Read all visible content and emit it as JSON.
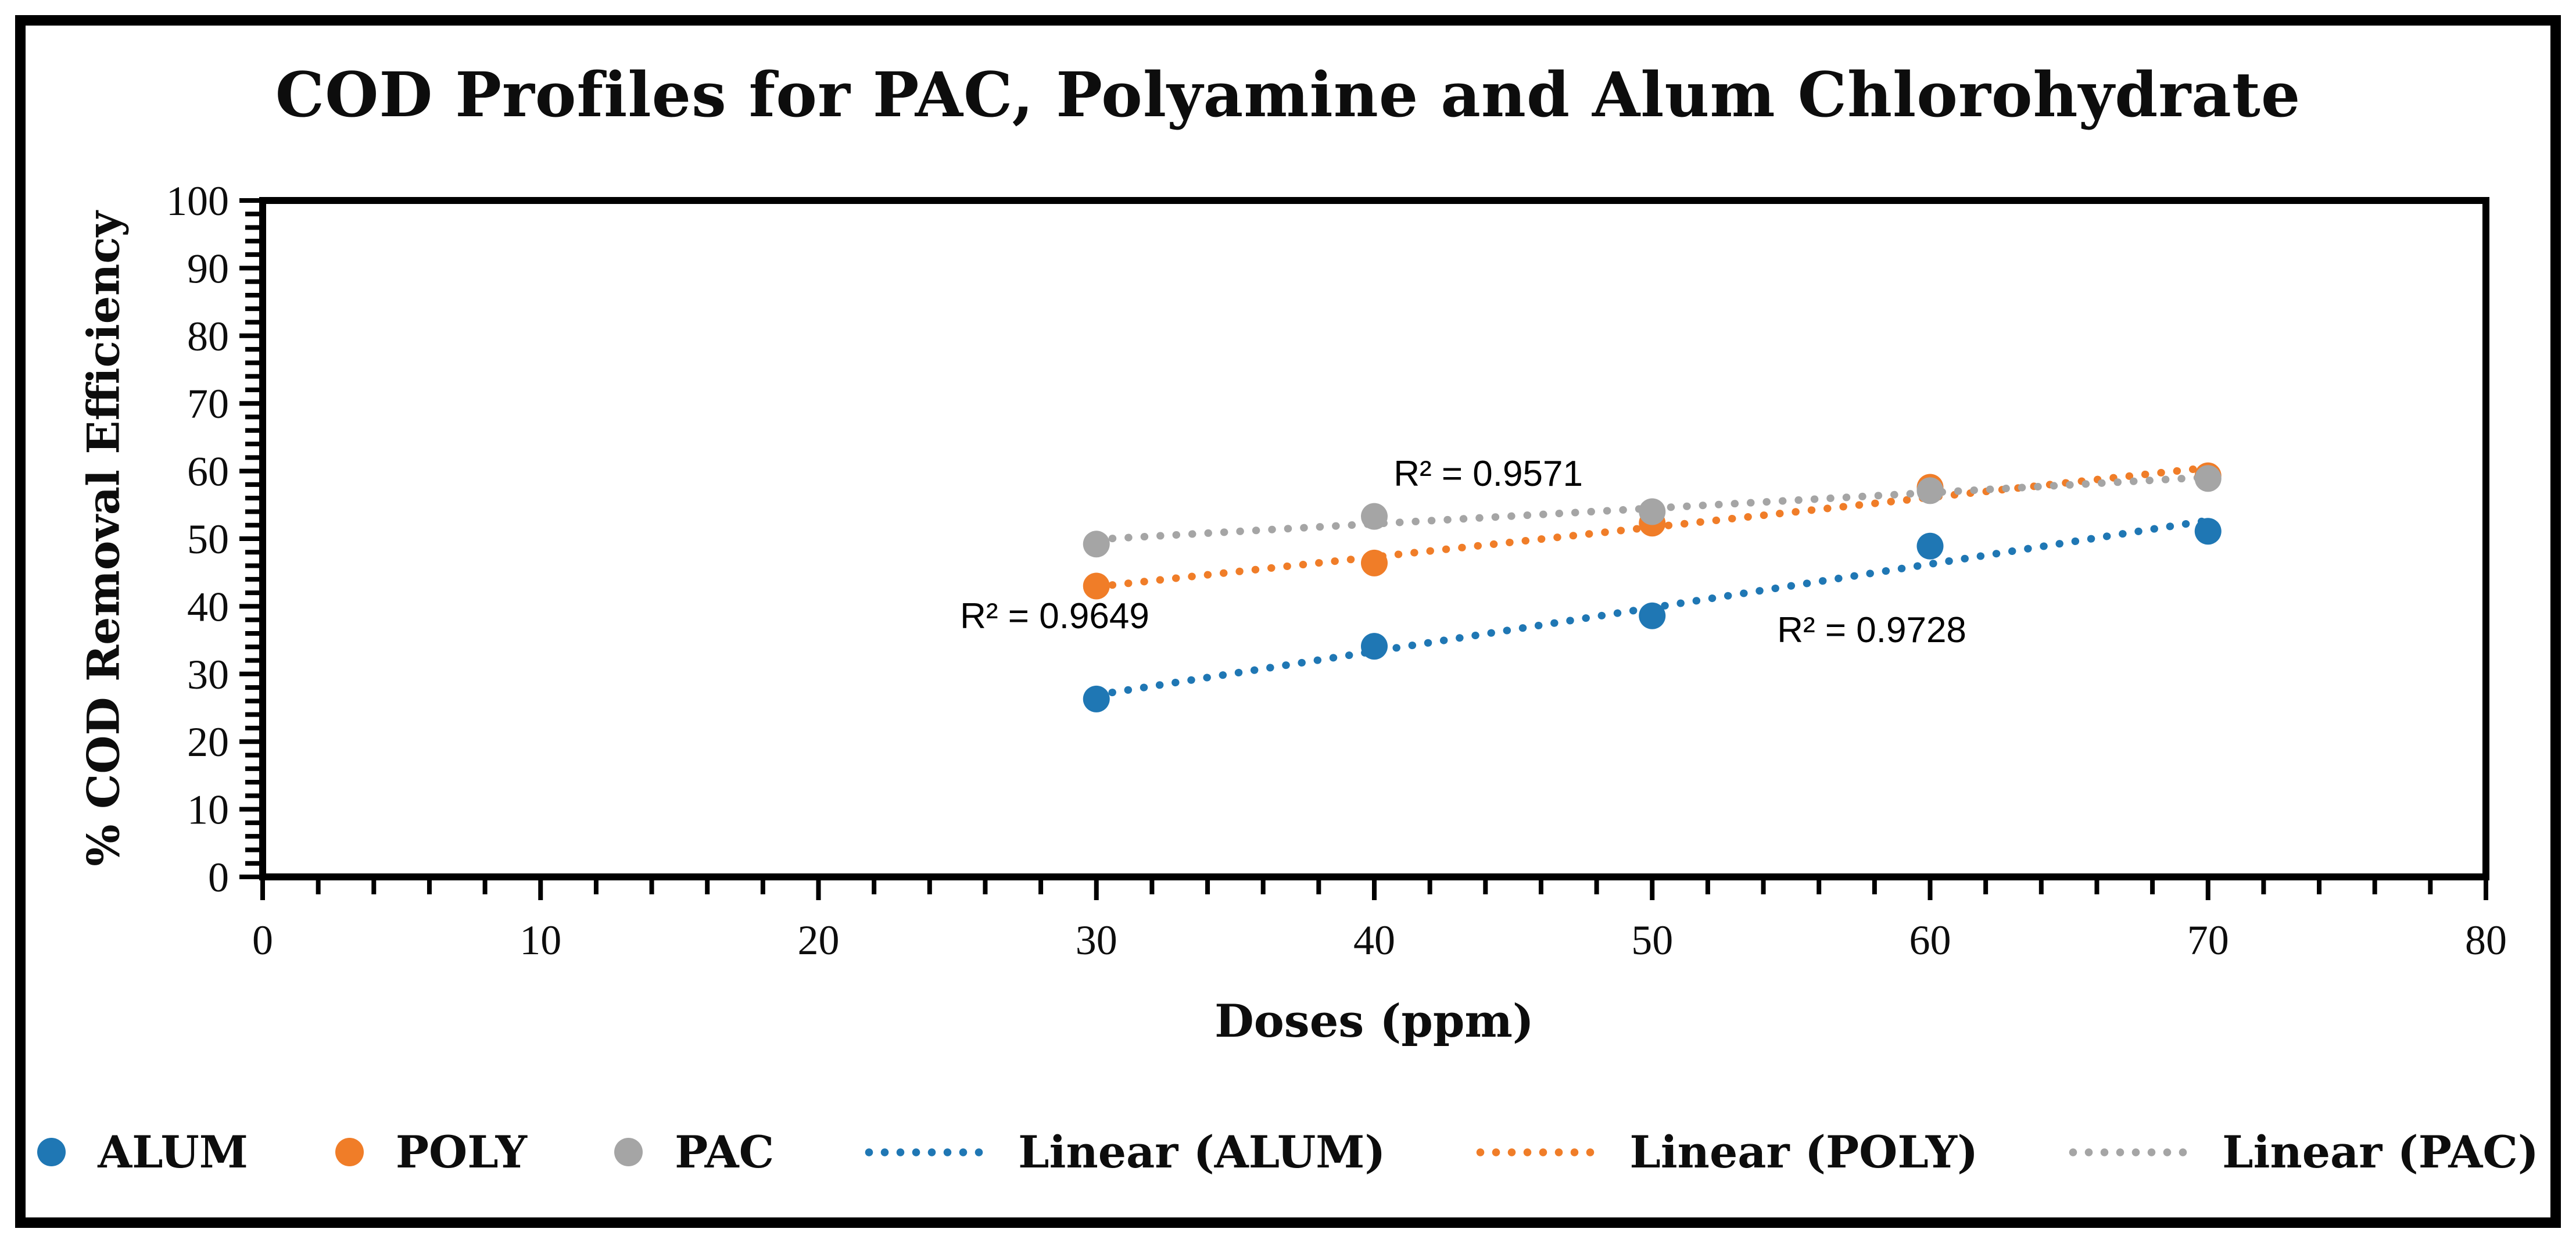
{
  "chart_data": {
    "type": "scatter",
    "title": "COD Profiles for PAC, Polyamine and Alum Chlorohydrate",
    "xlabel": "Doses (ppm)",
    "ylabel": "% COD Removal Efficiency",
    "grid": "off",
    "x_axis": {
      "min": 0,
      "max": 80,
      "major_step": 10,
      "minor_step": 2,
      "major_ticks": [
        0,
        10,
        20,
        30,
        40,
        50,
        60,
        70,
        80
      ]
    },
    "y_axis": {
      "min": 0,
      "max": 100,
      "major_step": 10,
      "minor_step": 2,
      "major_ticks": [
        0,
        10,
        20,
        30,
        40,
        50,
        60,
        70,
        80,
        90,
        100
      ]
    },
    "x": [
      30,
      40,
      50,
      60,
      70
    ],
    "series": [
      {
        "name": "ALUM",
        "color": "#1F77B4",
        "values": [
          26.3,
          34.1,
          38.6,
          48.9,
          51.1
        ],
        "trendline": {
          "label": "Linear (ALUM)",
          "style": "dotted",
          "r_squared": "0.9728",
          "start": {
            "x": 30,
            "y": 26.9
          },
          "end": {
            "x": 70,
            "y": 52.7
          }
        }
      },
      {
        "name": "POLY",
        "color": "#F07D28",
        "values": [
          43.0,
          46.4,
          52.3,
          57.6,
          59.3
        ],
        "trendline": {
          "label": "Linear (POLY)",
          "style": "dotted",
          "r_squared": "0.9649",
          "start": {
            "x": 30,
            "y": 42.9
          },
          "end": {
            "x": 70,
            "y": 60.5
          }
        }
      },
      {
        "name": "PAC",
        "color": "#A5A5A5",
        "values": [
          49.2,
          53.3,
          54.0,
          57.1,
          58.9
        ],
        "trendline": {
          "label": "Linear (PAC)",
          "style": "dotted",
          "r_squared": "0.9571",
          "start": {
            "x": 30,
            "y": 49.9
          },
          "end": {
            "x": 70,
            "y": 59.1
          }
        }
      }
    ],
    "annotations": [
      {
        "text": "R² = 0.9571",
        "series": "PAC",
        "x": 44.1,
        "y": 59.5
      },
      {
        "text": "R² = 0.9649",
        "series": "POLY",
        "x": 28.5,
        "y": 38.5
      },
      {
        "text": "R² = 0.9728",
        "series": "ALUM",
        "x": 57.9,
        "y": 36.4
      }
    ],
    "legend": {
      "position": "bottom",
      "items": [
        {
          "label": "ALUM",
          "marker": "dot",
          "series": "ALUM"
        },
        {
          "label": "POLY",
          "marker": "dot",
          "series": "POLY"
        },
        {
          "label": "PAC",
          "marker": "dot",
          "series": "PAC"
        },
        {
          "label": "Linear (ALUM)",
          "marker": "dotted-line",
          "series": "ALUM"
        },
        {
          "label": "Linear (POLY)",
          "marker": "dotted-line",
          "series": "POLY"
        },
        {
          "label": "Linear (PAC)",
          "marker": "dotted-line",
          "series": "PAC"
        }
      ]
    }
  }
}
